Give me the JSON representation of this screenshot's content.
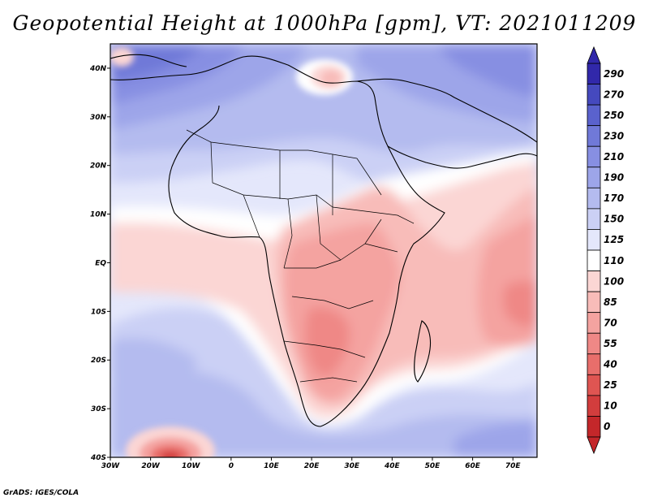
{
  "title": "Geopotential Height at 1000hPa [gpm], VT: 2021011209",
  "footer": "GrADS: IGES/COLA",
  "chart_data": {
    "type": "heatmap",
    "title": "Geopotential Height at 1000hPa [gpm], VT: 2021011209",
    "variable": "Geopotential Height",
    "level": "1000hPa",
    "units": "gpm",
    "valid_time": "2021011209",
    "xlim": [
      -30,
      76
    ],
    "ylim": [
      -40,
      45
    ],
    "x_ticks": [
      {
        "value": -30,
        "label": "30W"
      },
      {
        "value": -20,
        "label": "20W"
      },
      {
        "value": -10,
        "label": "10W"
      },
      {
        "value": 0,
        "label": "0"
      },
      {
        "value": 10,
        "label": "10E"
      },
      {
        "value": 20,
        "label": "20E"
      },
      {
        "value": 30,
        "label": "30E"
      },
      {
        "value": 40,
        "label": "40E"
      },
      {
        "value": 50,
        "label": "50E"
      },
      {
        "value": 60,
        "label": "60E"
      },
      {
        "value": 70,
        "label": "70E"
      }
    ],
    "y_ticks": [
      {
        "value": 40,
        "label": "40N"
      },
      {
        "value": 30,
        "label": "30N"
      },
      {
        "value": 20,
        "label": "20N"
      },
      {
        "value": 10,
        "label": "10N"
      },
      {
        "value": 0,
        "label": "EQ"
      },
      {
        "value": -10,
        "label": "10S"
      },
      {
        "value": -20,
        "label": "20S"
      },
      {
        "value": -30,
        "label": "30S"
      },
      {
        "value": -40,
        "label": "40S"
      }
    ],
    "colorbar": {
      "levels": [
        "0",
        "10",
        "25",
        "40",
        "55",
        "70",
        "85",
        "100",
        "110",
        "125",
        "150",
        "170",
        "190",
        "210",
        "230",
        "250",
        "270",
        "290"
      ],
      "colors": [
        "#c4272a",
        "#d23d3d",
        "#df5552",
        "#e86e6b",
        "#ef8886",
        "#f4a3a0",
        "#f8bcb9",
        "#fbd6d4",
        "#ffffff",
        "#e4e7fb",
        "#cbd0f5",
        "#b4bbef",
        "#9da5e9",
        "#878fe2",
        "#7079d8",
        "#5a62cd",
        "#4549be",
        "#3128aa"
      ]
    },
    "features": [
      {
        "name": "North Africa / Mediterranean high",
        "approx_value": "190-250"
      },
      {
        "name": "Central & Southern Africa low",
        "approx_value": "55-100"
      },
      {
        "name": "Indian Ocean low",
        "approx_value": "70-100"
      },
      {
        "name": "South Atlantic low near 40S 15W",
        "approx_value": "25-55"
      },
      {
        "name": "South Atlantic high",
        "approx_value": "150-210"
      }
    ]
  }
}
